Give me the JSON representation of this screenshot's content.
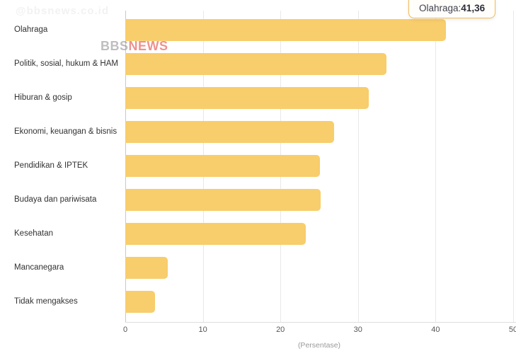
{
  "watermarks": {
    "corner_text": "@bbsnews.co.id",
    "logo_gray": "BBS",
    "logo_red": "NEWS"
  },
  "tooltip": {
    "category": "Olahraga: ",
    "value": "41,36"
  },
  "chart_data": {
    "type": "bar",
    "orientation": "horizontal",
    "title": "",
    "categories": [
      "Olahraga",
      "Politik, sosial, hukum & HAM",
      "Hiburan & gosip",
      "Ekonomi, keuangan & bisnis",
      "Pendidikan & IPTEK",
      "Budaya dan pariwisata",
      "Kesehatan",
      "Mancanegara",
      "Tidak mengakses"
    ],
    "values": [
      41.36,
      33.7,
      31.4,
      26.9,
      25.1,
      25.2,
      23.3,
      5.5,
      3.8
    ],
    "xlabel": "(Persentase)",
    "ylabel": "",
    "xlim": [
      0,
      50
    ],
    "xticks": [
      0,
      10,
      20,
      30,
      40,
      50
    ],
    "grid": "vertical",
    "legend": "none",
    "bar_color": "#F8CD6B",
    "tooltip_border_color": "#F2BC55",
    "highlighted_category": "Olahraga"
  }
}
